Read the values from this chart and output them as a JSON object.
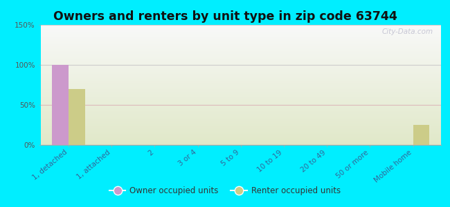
{
  "title": "Owners and renters by unit type in zip code 63744",
  "categories": [
    "1, detached",
    "1, attached",
    "2",
    "3 or 4",
    "5 to 9",
    "10 to 19",
    "20 to 49",
    "50 or more",
    "Mobile home"
  ],
  "owner_values": [
    100,
    0,
    0,
    0,
    0,
    0,
    0,
    0,
    0
  ],
  "renter_values": [
    70,
    0,
    0,
    0,
    0,
    0,
    0,
    0,
    25
  ],
  "owner_color": "#cc99cc",
  "renter_color": "#cccc88",
  "bar_width": 0.38,
  "ylim": [
    0,
    150
  ],
  "yticks": [
    0,
    50,
    100,
    150
  ],
  "ytick_labels": [
    "0%",
    "50%",
    "100%",
    "150%"
  ],
  "background_outer": "#00eeff",
  "background_inner_top": "#f8f8f8",
  "background_inner_bottom": "#e0e8c8",
  "title_fontsize": 12.5,
  "watermark": "City-Data.com",
  "grid_color_0": "#ffffff",
  "grid_color_50": "#ddcccc",
  "grid_color_100": "#ffffff",
  "grid_color_150": "#ffffff"
}
